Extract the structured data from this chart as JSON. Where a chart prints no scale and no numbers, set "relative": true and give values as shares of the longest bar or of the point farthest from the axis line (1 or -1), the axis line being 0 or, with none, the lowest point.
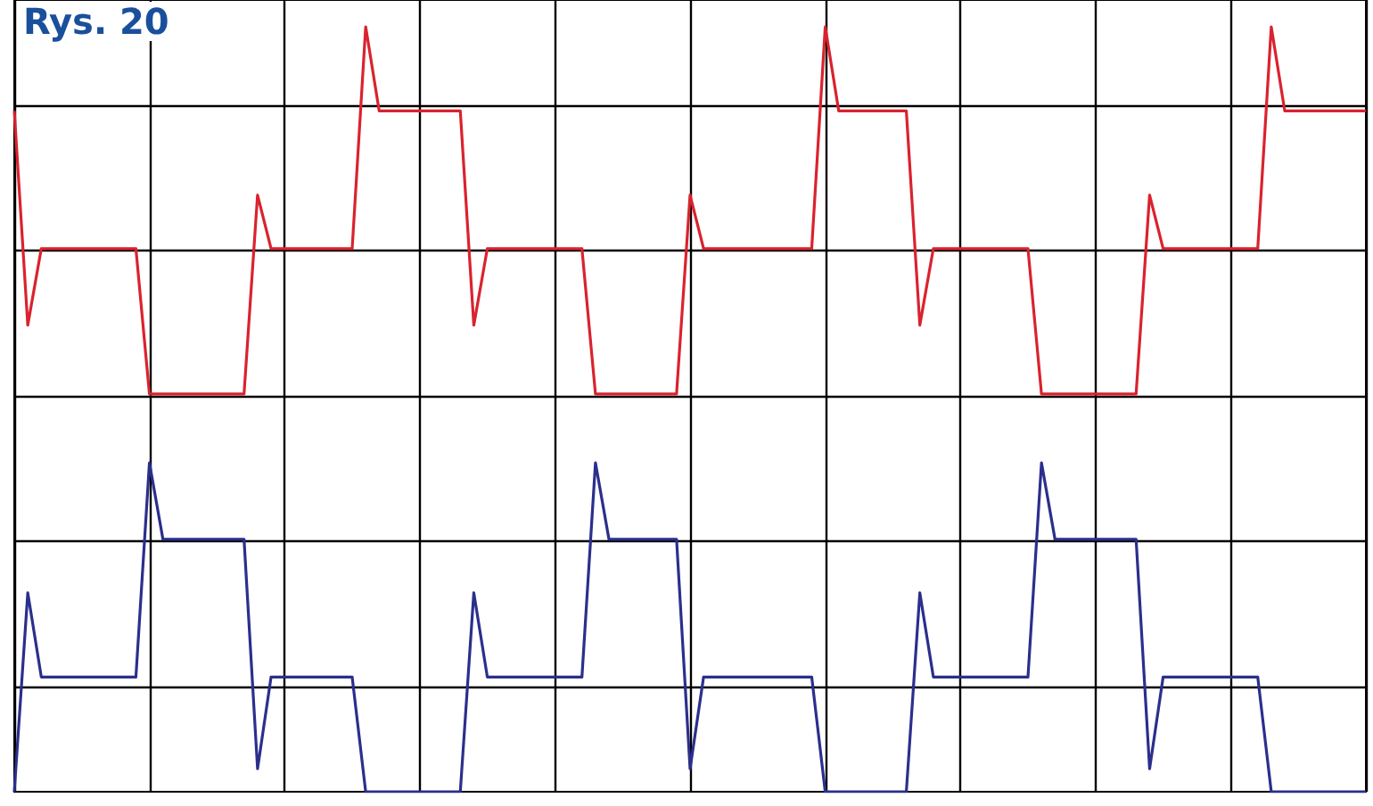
{
  "chart_data": {
    "type": "line",
    "title": "Rys. 20",
    "relative": true,
    "grid": true,
    "line_style": "solid",
    "categories": [
      null,
      null,
      null,
      null,
      null,
      null,
      null,
      null,
      null,
      null,
      null,
      null,
      null,
      null,
      null,
      null,
      null,
      null,
      null,
      null,
      null,
      null,
      null,
      null,
      null,
      null,
      null,
      null,
      null,
      null,
      null,
      null,
      null,
      null,
      null,
      null,
      null,
      null,
      null,
      null,
      null,
      null,
      null,
      null,
      null,
      null,
      null,
      null,
      null,
      null,
      null,
      null,
      null,
      null,
      null,
      null,
      null,
      null,
      null,
      null,
      null,
      null,
      null,
      null,
      null,
      null,
      null,
      null,
      null,
      null,
      null,
      null,
      null,
      null,
      null,
      null,
      null,
      null,
      null,
      null,
      null,
      null,
      null,
      null,
      null,
      null,
      null,
      null,
      null,
      null,
      null,
      null,
      null,
      null,
      null,
      null,
      null,
      null,
      null,
      null,
      null
    ],
    "series": [
      {
        "color": "#d9232e",
        "values": [
          0.89,
          0.61,
          0.71,
          0.71,
          0.71,
          0.71,
          0.71,
          0.71,
          0.71,
          0.71,
          0.52,
          0.52,
          0.52,
          0.52,
          0.52,
          0.52,
          0.52,
          0.52,
          0.78,
          0.71,
          0.71,
          0.71,
          0.71,
          0.71,
          0.71,
          0.71,
          1,
          0.89,
          0.89,
          0.89,
          0.89,
          0.89,
          0.89,
          0.89,
          0.61,
          0.71,
          0.71,
          0.71,
          0.71,
          0.71,
          0.71,
          0.71,
          0.71,
          0.52,
          0.52,
          0.52,
          0.52,
          0.52,
          0.52,
          0.52,
          0.78,
          0.71,
          0.71,
          0.71,
          0.71,
          0.71,
          0.71,
          0.71,
          0.71,
          0.71,
          1,
          0.89,
          0.89,
          0.89,
          0.89,
          0.89,
          0.89,
          0.61,
          0.71,
          0.71,
          0.71,
          0.71,
          0.71,
          0.71,
          0.71,
          0.71,
          0.52,
          0.52,
          0.52,
          0.52,
          0.52,
          0.52,
          0.52,
          0.52,
          0.78,
          0.71,
          0.71,
          0.71,
          0.71,
          0.71,
          0.71,
          0.71,
          0.71,
          1,
          0.89,
          0.89,
          0.89,
          0.89,
          0.89,
          0.89,
          0.89
        ]
      },
      {
        "color": "#2b2f8c",
        "values": [
          0,
          0.26,
          0.15,
          0.15,
          0.15,
          0.15,
          0.15,
          0.15,
          0.15,
          0.15,
          0.43,
          0.33,
          0.33,
          0.33,
          0.33,
          0.33,
          0.33,
          0.33,
          0.03,
          0.15,
          0.15,
          0.15,
          0.15,
          0.15,
          0.15,
          0.15,
          0,
          0,
          0,
          0,
          0,
          0,
          0,
          0,
          0.26,
          0.15,
          0.15,
          0.15,
          0.15,
          0.15,
          0.15,
          0.15,
          0.15,
          0.43,
          0.33,
          0.33,
          0.33,
          0.33,
          0.33,
          0.33,
          0.03,
          0.15,
          0.15,
          0.15,
          0.15,
          0.15,
          0.15,
          0.15,
          0.15,
          0.15,
          0,
          0,
          0,
          0,
          0,
          0,
          0,
          0.26,
          0.15,
          0.15,
          0.15,
          0.15,
          0.15,
          0.15,
          0.15,
          0.15,
          0.43,
          0.33,
          0.33,
          0.33,
          0.33,
          0.33,
          0.33,
          0.33,
          0.03,
          0.15,
          0.15,
          0.15,
          0.15,
          0.15,
          0.15,
          0.15,
          0.15,
          0,
          0,
          0,
          0,
          0,
          0,
          0,
          0
        ]
      }
    ]
  }
}
